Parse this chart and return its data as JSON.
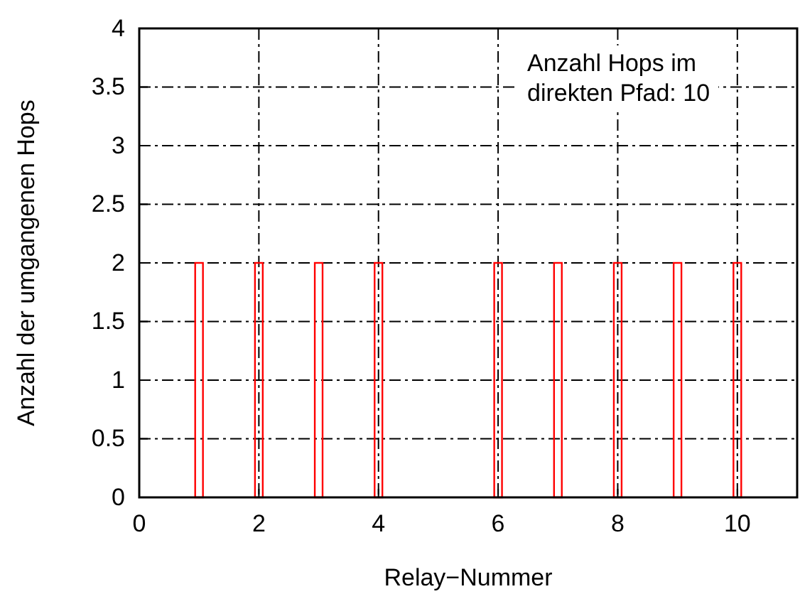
{
  "chart_data": {
    "type": "bar",
    "xlabel": "Relay−Nummer",
    "ylabel": "Anzahl der umgangenen Hops",
    "x": [
      1,
      2,
      3,
      4,
      5,
      6,
      7,
      8,
      9,
      10
    ],
    "series": [
      {
        "color": "#ff0000",
        "values": [
          2,
          2,
          2,
          2,
          0,
          2,
          2,
          2,
          2,
          2
        ]
      }
    ],
    "xlim": [
      0,
      11
    ],
    "xticks": [
      0,
      2,
      4,
      6,
      8,
      10
    ],
    "ylim": [
      0,
      4
    ],
    "yticks": [
      0,
      0.5,
      1,
      1.5,
      2,
      2.5,
      3,
      3.5,
      4
    ],
    "grid": true,
    "annotations": [
      "Anzahl Hops im direkten Pfad: 10"
    ]
  }
}
